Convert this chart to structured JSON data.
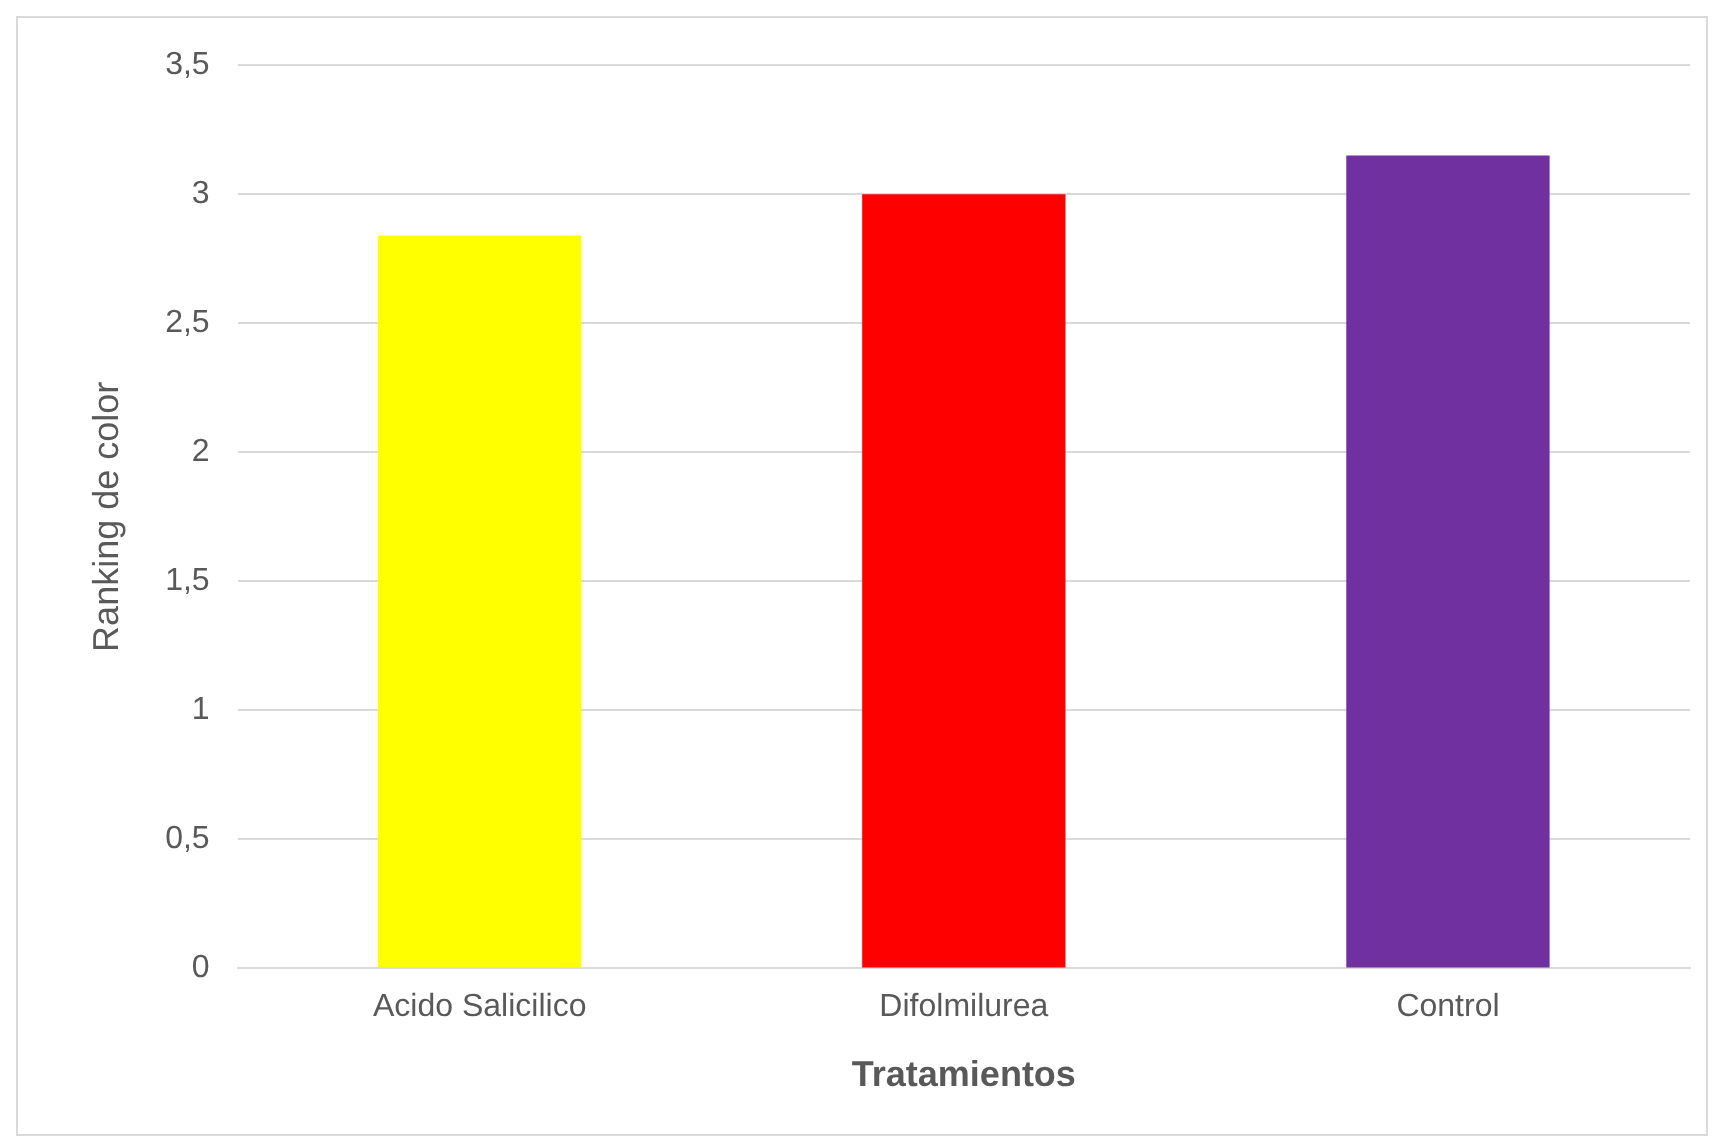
{
  "chart_data": {
    "type": "bar",
    "xlabel": "Tratamientos",
    "ylabel": "Ranking de color",
    "categories": [
      "Acido Salicilico",
      "Difolmilurea",
      "Control"
    ],
    "values": [
      2.84,
      3.0,
      3.15
    ],
    "colors": [
      "#ffff00",
      "#ff0000",
      "#7030a0"
    ],
    "ylim": [
      0,
      3.5
    ],
    "yticks": [
      {
        "value": 0,
        "label": "0"
      },
      {
        "value": 0.5,
        "label": "0,5"
      },
      {
        "value": 1,
        "label": "1"
      },
      {
        "value": 1.5,
        "label": "1,5"
      },
      {
        "value": 2,
        "label": "2"
      },
      {
        "value": 2.5,
        "label": "2,5"
      },
      {
        "value": 3,
        "label": "3"
      },
      {
        "value": 3.5,
        "label": "3,5"
      }
    ],
    "grid": "y",
    "legend": false
  }
}
